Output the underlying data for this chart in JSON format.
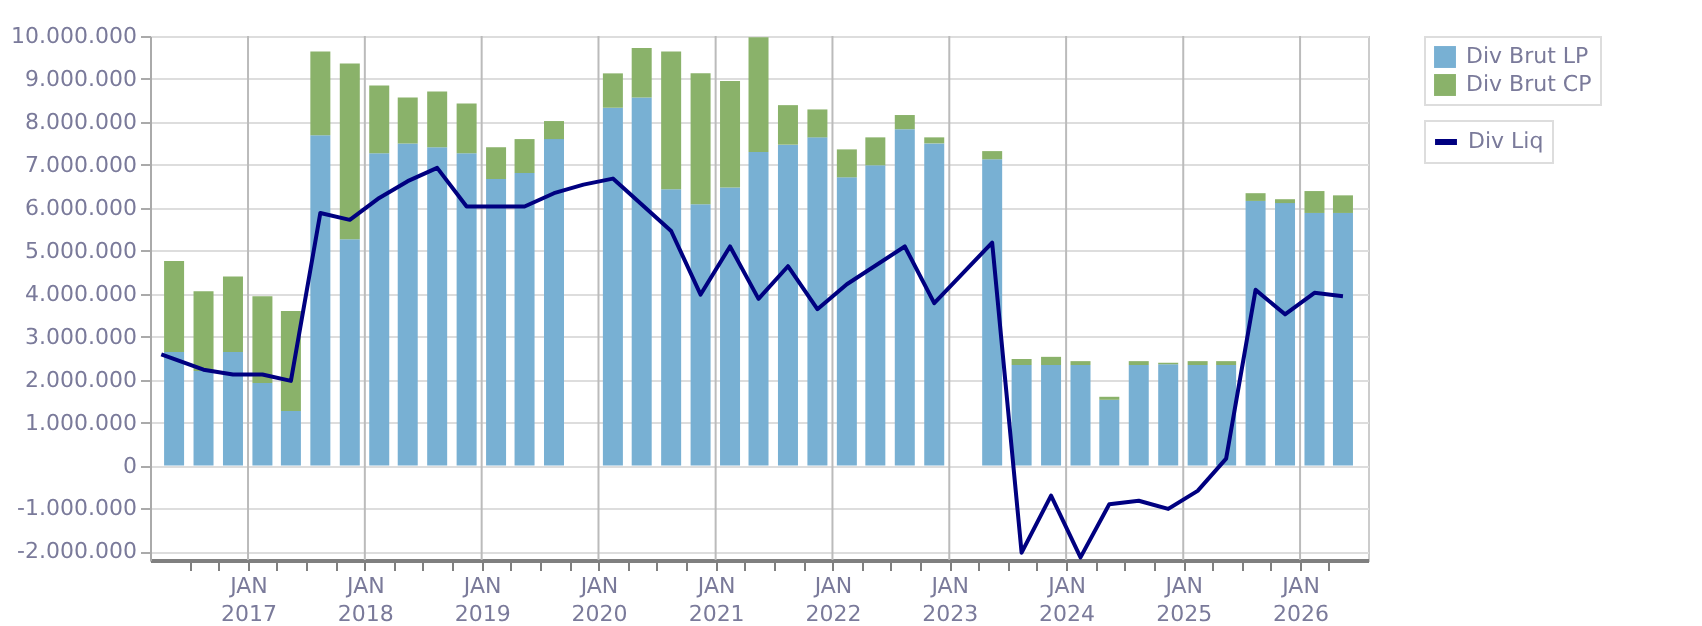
{
  "chart_data": {
    "type": "bar",
    "stacked": true,
    "grid": true,
    "legend": "top right",
    "x": [
      "2016-05-15",
      "2016-08-15",
      "2016-11-15",
      "2017-02-15",
      "2017-05-15",
      "2017-08-15",
      "2017-11-15",
      "2018-02-15",
      "2018-05-15",
      "2018-08-15",
      "2018-11-15",
      "2019-02-15",
      "2019-05-15",
      "2019-08-15",
      "2019-11-15",
      "2020-02-15",
      "2020-05-15",
      "2020-08-15",
      "2020-11-15",
      "2021-02-15",
      "2021-05-15",
      "2021-08-15",
      "2021-11-15",
      "2022-02-15",
      "2022-05-15",
      "2022-08-15",
      "2022-11-15",
      "2023-02-15",
      "2023-05-15",
      "2023-08-15",
      "2023-11-15",
      "2024-02-15",
      "2024-05-15",
      "2024-08-15",
      "2024-11-15",
      "2025-02-15",
      "2025-05-15",
      "2025-08-15",
      "2025-11-15",
      "2026-02-15",
      "2026-05-15"
    ],
    "series": [
      {
        "name": "Div Brut LP",
        "color": "#78b0d3",
        "values": [
          2640000,
          2200000,
          2640000,
          1920000,
          1270000,
          7690000,
          5270000,
          7270000,
          7500000,
          7410000,
          7270000,
          6670000,
          6810000,
          7600000,
          null,
          8330000,
          8570000,
          6430000,
          6080000,
          6470000,
          7300000,
          7470000,
          7640000,
          6710000,
          6990000,
          7830000,
          7500000,
          null,
          7130000,
          2340000,
          2340000,
          2340000,
          1530000,
          2340000,
          2360000,
          2340000,
          2340000,
          6160000,
          6110000,
          5880000,
          5880000
        ]
      },
      {
        "name": "Div Brut CP",
        "color": "#8ab26a",
        "values": [
          2120000,
          1860000,
          1760000,
          2020000,
          2330000,
          1950000,
          4090000,
          1580000,
          1070000,
          1300000,
          1160000,
          740000,
          790000,
          420000,
          null,
          800000,
          1150000,
          3210000,
          3050000,
          2480000,
          2670000,
          920000,
          650000,
          650000,
          650000,
          330000,
          140000,
          null,
          190000,
          140000,
          190000,
          90000,
          70000,
          90000,
          30000,
          90000,
          90000,
          180000,
          90000,
          510000,
          410000
        ]
      },
      {
        "name": "Div Liq",
        "type": "line",
        "color": "#000080",
        "x": [
          "2016-04-05",
          "2016-08-15",
          "2016-11-15",
          "2017-02-15",
          "2017-05-15",
          "2017-08-15",
          "2017-11-15",
          "2018-02-15",
          "2018-05-15",
          "2018-08-15",
          "2018-11-15",
          "2019-05-15",
          "2019-08-15",
          "2019-11-15",
          "2020-02-15",
          "2020-08-15",
          "2020-11-15",
          "2021-02-15",
          "2021-05-15",
          "2021-08-15",
          "2021-11-15",
          "2022-02-15",
          "2022-08-15",
          "2022-11-15",
          "2023-05-15",
          "2023-08-15",
          "2023-11-15",
          "2024-02-15",
          "2024-05-15",
          "2024-08-15",
          "2024-11-15",
          "2025-02-15",
          "2025-05-15",
          "2025-08-15",
          "2025-11-15",
          "2026-02-15",
          "2026-05-15"
        ],
        "values": [
          2590000,
          2230000,
          2120000,
          2120000,
          1970000,
          5880000,
          5720000,
          6230000,
          6620000,
          6930000,
          6030000,
          6030000,
          6340000,
          6540000,
          6680000,
          5460000,
          3980000,
          5100000,
          3880000,
          4640000,
          3640000,
          4220000,
          5100000,
          3780000,
          5190000,
          -2030000,
          -700000,
          -2140000,
          -900000,
          -820000,
          -1010000,
          -590000,
          160000,
          4090000,
          3520000,
          4020000,
          3940000
        ]
      }
    ],
    "xlim": [
      "2016-04-01",
      "2026-07-01"
    ],
    "xticks": [
      {
        "value": "2016-07-01",
        "label": null
      },
      {
        "value": "2016-10-01",
        "label": null
      },
      {
        "value": "2017-01-01",
        "label": "JAN\n2017"
      },
      {
        "value": "2017-04-01",
        "label": null
      },
      {
        "value": "2017-07-01",
        "label": null
      },
      {
        "value": "2017-10-01",
        "label": null
      },
      {
        "value": "2018-01-01",
        "label": "JAN\n2018"
      },
      {
        "value": "2018-04-01",
        "label": null
      },
      {
        "value": "2018-07-01",
        "label": null
      },
      {
        "value": "2018-10-01",
        "label": null
      },
      {
        "value": "2019-01-01",
        "label": "JAN\n2019"
      },
      {
        "value": "2019-04-01",
        "label": null
      },
      {
        "value": "2019-07-01",
        "label": null
      },
      {
        "value": "2019-10-01",
        "label": null
      },
      {
        "value": "2020-01-01",
        "label": "JAN\n2020"
      },
      {
        "value": "2020-04-01",
        "label": null
      },
      {
        "value": "2020-07-01",
        "label": null
      },
      {
        "value": "2020-10-01",
        "label": null
      },
      {
        "value": "2021-01-01",
        "label": "JAN\n2021"
      },
      {
        "value": "2021-04-01",
        "label": null
      },
      {
        "value": "2021-07-01",
        "label": null
      },
      {
        "value": "2021-10-01",
        "label": null
      },
      {
        "value": "2022-01-01",
        "label": "JAN\n2022"
      },
      {
        "value": "2022-04-01",
        "label": null
      },
      {
        "value": "2022-07-01",
        "label": null
      },
      {
        "value": "2022-10-01",
        "label": null
      },
      {
        "value": "2023-01-01",
        "label": "JAN\n2023"
      },
      {
        "value": "2023-04-01",
        "label": null
      },
      {
        "value": "2023-07-01",
        "label": null
      },
      {
        "value": "2023-10-01",
        "label": null
      },
      {
        "value": "2024-01-01",
        "label": "JAN\n2024"
      },
      {
        "value": "2024-04-01",
        "label": null
      },
      {
        "value": "2024-07-01",
        "label": null
      },
      {
        "value": "2024-10-01",
        "label": null
      },
      {
        "value": "2025-01-01",
        "label": "JAN\n2025"
      },
      {
        "value": "2025-04-01",
        "label": null
      },
      {
        "value": "2025-07-01",
        "label": null
      },
      {
        "value": "2025-10-01",
        "label": null
      },
      {
        "value": "2026-01-01",
        "label": "JAN\n2026"
      },
      {
        "value": "2026-04-01",
        "label": null
      }
    ],
    "ylim": [
      -2200000,
      10000000
    ],
    "yticks": [
      {
        "value": -2000000,
        "label": "-2.000.000"
      },
      {
        "value": -1000000,
        "label": "-1.000.000"
      },
      {
        "value": 0,
        "label": "0"
      },
      {
        "value": 1000000,
        "label": "1.000.000"
      },
      {
        "value": 2000000,
        "label": "2.000.000"
      },
      {
        "value": 3000000,
        "label": "3.000.000"
      },
      {
        "value": 4000000,
        "label": "4.000.000"
      },
      {
        "value": 5000000,
        "label": "5.000.000"
      },
      {
        "value": 6000000,
        "label": "6.000.000"
      },
      {
        "value": 7000000,
        "label": "7.000.000"
      },
      {
        "value": 8000000,
        "label": "8.000.000"
      },
      {
        "value": 9000000,
        "label": "9.000.000"
      },
      {
        "value": 10000000,
        "label": "10.000.000"
      }
    ]
  }
}
